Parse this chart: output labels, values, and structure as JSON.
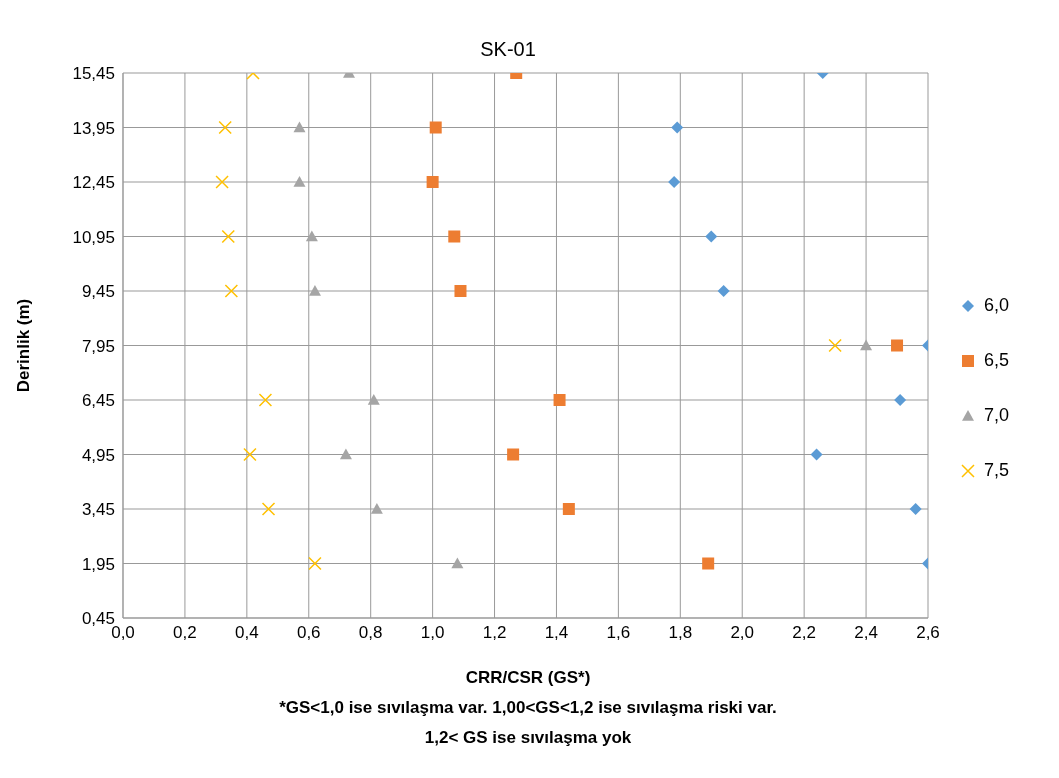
{
  "chart_data": {
    "type": "scatter",
    "title": "SK-01",
    "xlabel": "CRR/CSR (GS*)",
    "ylabel": "Derinlik (m)",
    "annotations": [
      "*GS<1,0 ise sıvılaşma var.  1,00<GS<1,2 ise sıvılaşma riski var.",
      "1,2< GS ise sıvılaşma yok"
    ],
    "xlim": [
      0,
      2.6
    ],
    "xticks": [
      {
        "value": 0,
        "label": "0,0"
      },
      {
        "value": 0.2,
        "label": "0,2"
      },
      {
        "value": 0.4,
        "label": "0,4"
      },
      {
        "value": 0.6,
        "label": "0,6"
      },
      {
        "value": 0.8,
        "label": "0,8"
      },
      {
        "value": 1.0,
        "label": "1,0"
      },
      {
        "value": 1.2,
        "label": "1,2"
      },
      {
        "value": 1.4,
        "label": "1,4"
      },
      {
        "value": 1.6,
        "label": "1,6"
      },
      {
        "value": 1.8,
        "label": "1,8"
      },
      {
        "value": 2.0,
        "label": "2,0"
      },
      {
        "value": 2.2,
        "label": "2,2"
      },
      {
        "value": 2.4,
        "label": "2,4"
      },
      {
        "value": 2.6,
        "label": "2,6"
      }
    ],
    "ylim": [
      0.45,
      15.45
    ],
    "yticks": [
      {
        "value": 0.45,
        "label": "0,45"
      },
      {
        "value": 1.95,
        "label": "1,95"
      },
      {
        "value": 3.45,
        "label": "3,45"
      },
      {
        "value": 4.95,
        "label": "4,95"
      },
      {
        "value": 6.45,
        "label": "6,45"
      },
      {
        "value": 7.95,
        "label": "7,95"
      },
      {
        "value": 9.45,
        "label": "9,45"
      },
      {
        "value": 10.95,
        "label": "10,95"
      },
      {
        "value": 12.45,
        "label": "12,45"
      },
      {
        "value": 13.95,
        "label": "13,95"
      },
      {
        "value": 15.45,
        "label": "15,45"
      }
    ],
    "grid": true,
    "legend": "right",
    "series": [
      {
        "name": "6,0",
        "color": "#5b9bd5",
        "marker": "diamond",
        "x": [
          2.26,
          1.79,
          1.78,
          1.9,
          1.94,
          2.6,
          2.51,
          2.24,
          2.56,
          2.6
        ],
        "values": [
          15.45,
          13.95,
          12.45,
          10.95,
          9.45,
          7.95,
          6.45,
          4.95,
          3.45,
          1.95
        ]
      },
      {
        "name": "6,5",
        "color": "#ed7d31",
        "marker": "square",
        "x": [
          1.27,
          1.01,
          1.0,
          1.07,
          1.09,
          2.5,
          1.41,
          1.26,
          1.44,
          1.89
        ],
        "values": [
          15.45,
          13.95,
          12.45,
          10.95,
          9.45,
          7.95,
          6.45,
          4.95,
          3.45,
          1.95
        ]
      },
      {
        "name": "7,0",
        "color": "#a5a5a5",
        "marker": "triangle",
        "x": [
          0.73,
          0.57,
          0.57,
          0.61,
          0.62,
          2.4,
          0.81,
          0.72,
          0.82,
          1.08
        ],
        "values": [
          15.45,
          13.95,
          12.45,
          10.95,
          9.45,
          7.95,
          6.45,
          4.95,
          3.45,
          1.95
        ]
      },
      {
        "name": "7,5",
        "color": "#ffc000",
        "marker": "cross",
        "x": [
          0.42,
          0.33,
          0.32,
          0.34,
          0.35,
          2.3,
          0.46,
          0.41,
          0.47,
          0.62
        ],
        "values": [
          15.45,
          13.95,
          12.45,
          10.95,
          9.45,
          7.95,
          6.45,
          4.95,
          3.45,
          1.95
        ]
      }
    ]
  }
}
